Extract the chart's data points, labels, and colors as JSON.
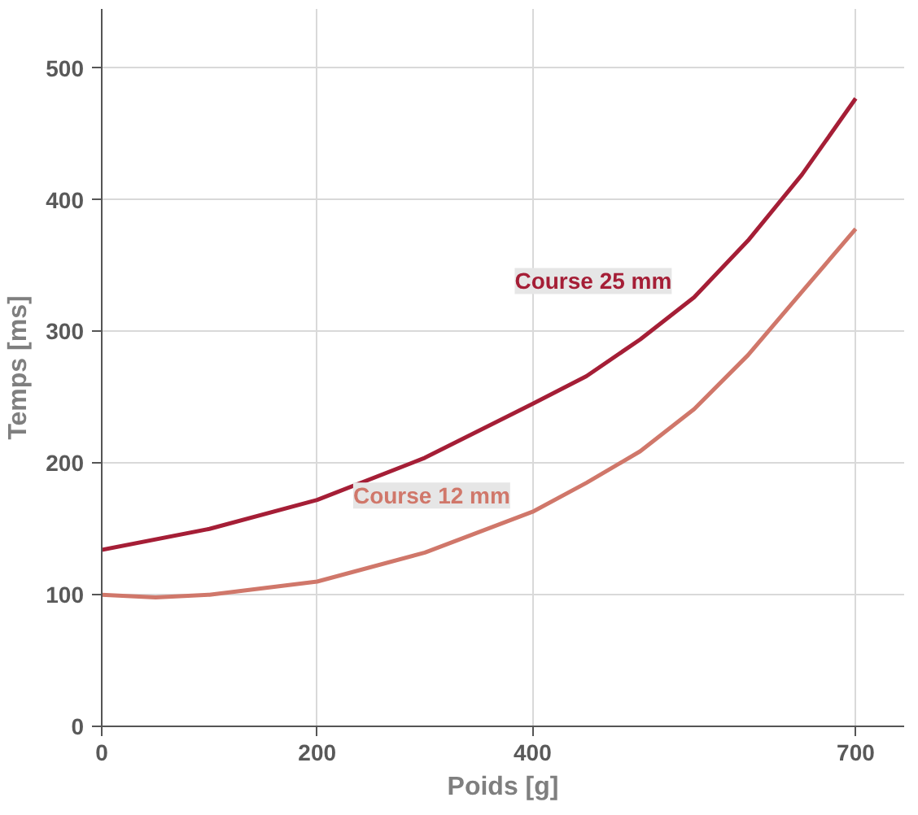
{
  "chart_data": {
    "type": "line",
    "xlabel": "Poids [g]",
    "ylabel": "Temps [ms]",
    "xlim": [
      0,
      745
    ],
    "ylim": [
      0,
      545
    ],
    "xticks": [
      0,
      200,
      400,
      700
    ],
    "yticks": [
      0,
      100,
      200,
      300,
      400,
      500
    ],
    "grid": true,
    "line_style": "solid",
    "series": [
      {
        "name": "Course 25 mm",
        "color": "#a51e36",
        "x": [
          0,
          100,
          200,
          300,
          400,
          450,
          500,
          550,
          600,
          650,
          700
        ],
        "values": [
          134,
          150,
          172,
          204,
          245,
          266,
          294,
          326,
          369,
          419,
          477
        ]
      },
      {
        "name": "Course 12 mm",
        "color": "#d0776a",
        "x": [
          0,
          50,
          100,
          200,
          300,
          400,
          450,
          500,
          550,
          600,
          650,
          700
        ],
        "values": [
          100,
          98,
          100,
          110,
          132,
          163,
          185,
          209,
          241,
          282,
          330,
          378
        ]
      }
    ]
  }
}
